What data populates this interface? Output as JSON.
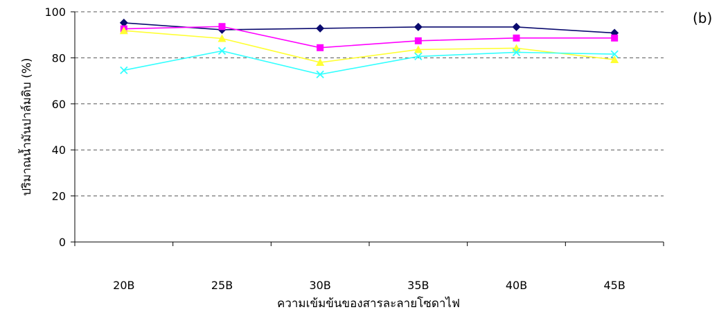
{
  "chart_data": {
    "type": "line",
    "panel_label": "(b)",
    "xlabel": "ความเข้มข้นของสารละลายโซดาไฟ",
    "ylabel": "ปริมาณน้ำมันปาล์มดิบ (%)",
    "ylim": [
      0,
      100
    ],
    "yticks": [
      0,
      20,
      40,
      60,
      80,
      100
    ],
    "grid": "horizontal-dashed",
    "categories": [
      "20B",
      "25B",
      "30B",
      "35B",
      "40B",
      "45B"
    ],
    "series": [
      {
        "color": "#0a0a6e",
        "marker": "diamond",
        "values": [
          95.2,
          92.2,
          92.8,
          93.4,
          93.4,
          90.8
        ]
      },
      {
        "color": "#ff00ff",
        "marker": "square",
        "values": [
          92.6,
          93.6,
          84.4,
          87.4,
          88.6,
          88.6
        ]
      },
      {
        "color": "#ffff33",
        "marker": "triangle",
        "values": [
          91.8,
          88.4,
          78.0,
          83.6,
          84.2,
          79.2
        ]
      },
      {
        "color": "#33ffff",
        "marker": "x",
        "values": [
          74.6,
          83.0,
          72.8,
          80.6,
          82.4,
          81.6
        ]
      }
    ]
  }
}
